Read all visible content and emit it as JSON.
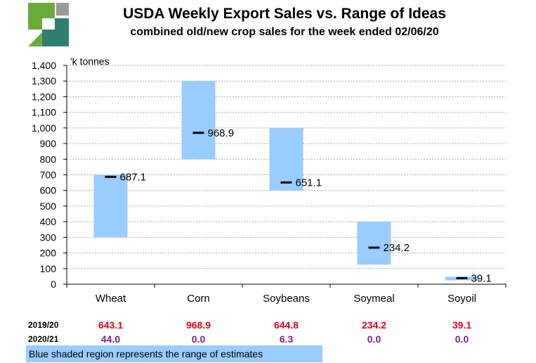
{
  "header": {
    "title": "USDA Weekly Export Sales vs. Range of Ideas",
    "subtitle": "combined old/new crop sales for the week ended 02/06/20"
  },
  "colors": {
    "range_fill": "#99ccff",
    "old_crop_text": "#e3001b",
    "new_crop_text": "#7a1f8a",
    "logo_green": "#6aaa3a",
    "logo_teal": "#2f7f6f",
    "logo_gray": "#999999"
  },
  "chart_data": {
    "type": "bar",
    "title": "USDA Weekly Export Sales vs. Range of Ideas",
    "subtitle": "combined old/new crop sales for the week ended 02/06/20",
    "ylabel": "'k tonnes",
    "ylim": [
      0,
      1400
    ],
    "yticks": [
      "0",
      "100",
      "200",
      "300",
      "400",
      "500",
      "600",
      "700",
      "800",
      "900",
      "1,000",
      "1,100",
      "1,200",
      "1,300",
      "1,400"
    ],
    "grid": true,
    "categories": [
      "Wheat",
      "Corn",
      "Soybeans",
      "Soymeal",
      "Soyoil"
    ],
    "range_low": [
      300,
      800,
      600,
      125,
      25
    ],
    "range_high": [
      700,
      1300,
      1000,
      400,
      25
    ],
    "actual": [
      687.1,
      968.9,
      651.1,
      234.2,
      39.1
    ],
    "actual_labels": [
      "687.1",
      "968.9",
      "651.1",
      "234.2",
      "39.1"
    ]
  },
  "table": {
    "rows": [
      {
        "label": "2019/20",
        "values": [
          "643.1",
          "968.9",
          "644.8",
          "234.2",
          "39.1"
        ]
      },
      {
        "label": "2020/21",
        "values": [
          "44.0",
          "0.0",
          "6.3",
          "0.0",
          "0.0"
        ]
      }
    ]
  },
  "footnote": "Blue shaded region represents the range of estimates"
}
